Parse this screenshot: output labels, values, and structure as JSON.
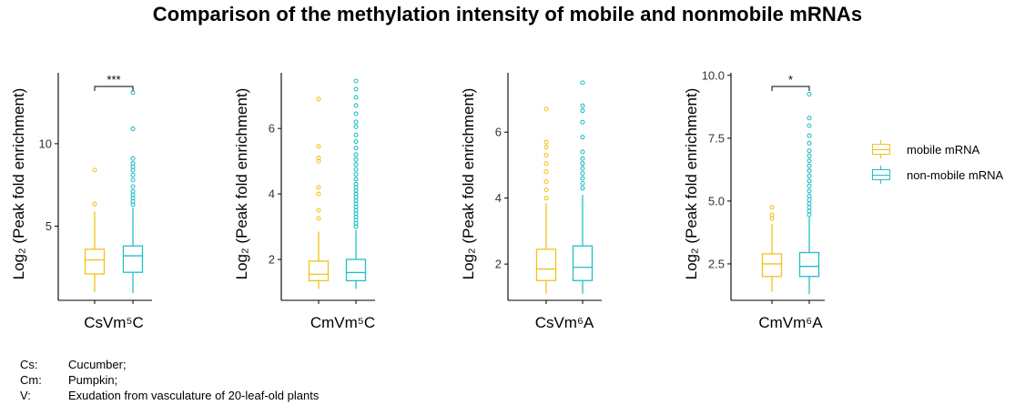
{
  "title": "Comparison of the methylation intensity of mobile and nonmobile mRNAs",
  "colors": {
    "mobile": "#f2c21b",
    "nonmobile": "#22bfc7"
  },
  "legend": [
    {
      "key": "mobile",
      "label": "mobile mRNA"
    },
    {
      "key": "nonmobile",
      "label": "non-mobile mRNA"
    }
  ],
  "notes": [
    {
      "abbr": "Cs:",
      "text": "Cucumber;"
    },
    {
      "abbr": "Cm:",
      "text": "Pumpkin;"
    },
    {
      "abbr": "V:",
      "text": "Exudation from vasculature of 20-leaf-old plants"
    }
  ],
  "chart_data": [
    {
      "type": "box",
      "xlabel": "CsVm⁵C",
      "ylabel": "Log₂ (Peak fold enrichment)",
      "ylim": [
        0.5,
        14.3
      ],
      "yticks": [
        5,
        10
      ],
      "ytick_labels": [
        "5",
        "10"
      ],
      "significance": "***",
      "series": [
        {
          "name": "mobile mRNA",
          "key": "mobile",
          "min": 1.0,
          "q1": 2.1,
          "median": 2.95,
          "q3": 3.6,
          "max": 5.9,
          "outliers": [
            6.35,
            8.4
          ]
        },
        {
          "name": "non-mobile mRNA",
          "key": "nonmobile",
          "min": 0.95,
          "q1": 2.2,
          "median": 3.2,
          "q3": 3.8,
          "max": 6.1,
          "outliers": [
            6.3,
            6.5,
            6.7,
            6.9,
            7.1,
            7.4,
            7.8,
            8.1,
            8.4,
            8.6,
            8.8,
            9.1,
            10.9,
            13.1
          ]
        }
      ]
    },
    {
      "type": "box",
      "xlabel": "CmVm⁵C",
      "ylabel": "Log₂ (Peak fold enrichment)",
      "ylim": [
        0.75,
        7.7
      ],
      "yticks": [
        2,
        4,
        6
      ],
      "ytick_labels": [
        "2",
        "4",
        "6"
      ],
      "significance": "",
      "series": [
        {
          "name": "mobile mRNA",
          "key": "mobile",
          "min": 1.1,
          "q1": 1.35,
          "median": 1.55,
          "q3": 1.95,
          "max": 2.85,
          "outliers": [
            3.25,
            3.5,
            4.0,
            4.2,
            5.0,
            5.1,
            5.45,
            6.9
          ]
        },
        {
          "name": "non-mobile mRNA",
          "key": "nonmobile",
          "min": 1.1,
          "q1": 1.35,
          "median": 1.6,
          "q3": 2.0,
          "max": 2.9,
          "outliers": [
            3.0,
            3.1,
            3.2,
            3.3,
            3.4,
            3.5,
            3.6,
            3.7,
            3.8,
            3.9,
            4.0,
            4.1,
            4.2,
            4.3,
            4.45,
            4.6,
            4.75,
            4.9,
            5.05,
            5.2,
            5.4,
            5.6,
            5.8,
            6.05,
            6.2,
            6.45,
            6.7,
            6.95,
            7.2,
            7.45
          ]
        }
      ]
    },
    {
      "type": "box",
      "xlabel": "CsVm⁶A",
      "ylabel": "Log₂ (Peak fold enrichment)",
      "ylim": [
        0.9,
        7.8
      ],
      "yticks": [
        2,
        4,
        6
      ],
      "ytick_labels": [
        "2",
        "4",
        "6"
      ],
      "significance": "",
      "series": [
        {
          "name": "mobile mRNA",
          "key": "mobile",
          "min": 1.1,
          "q1": 1.5,
          "median": 1.85,
          "q3": 2.45,
          "max": 3.85,
          "outliers": [
            4.0,
            4.25,
            4.5,
            4.8,
            5.05,
            5.3,
            5.55,
            5.7,
            6.7
          ]
        },
        {
          "name": "non-mobile mRNA",
          "key": "nonmobile",
          "min": 1.1,
          "q1": 1.5,
          "median": 1.9,
          "q3": 2.55,
          "max": 4.1,
          "outliers": [
            4.3,
            4.45,
            4.6,
            4.75,
            4.9,
            5.05,
            5.2,
            5.4,
            5.85,
            6.3,
            6.65,
            6.8,
            7.5
          ]
        }
      ]
    },
    {
      "type": "box",
      "xlabel": "CmVm⁶A",
      "ylabel": "Log₂ (Peak fold enrichment)",
      "ylim": [
        1.05,
        10.1
      ],
      "yticks": [
        2.5,
        5.0,
        7.5,
        10.0
      ],
      "ytick_labels": [
        "2.5",
        "5.0",
        "7.5",
        "10.0"
      ],
      "significance": "*",
      "series": [
        {
          "name": "mobile mRNA",
          "key": "mobile",
          "min": 1.4,
          "q1": 2.0,
          "median": 2.5,
          "q3": 2.9,
          "max": 4.1,
          "outliers": [
            4.3,
            4.45,
            4.75
          ]
        },
        {
          "name": "non-mobile mRNA",
          "key": "nonmobile",
          "min": 1.3,
          "q1": 2.0,
          "median": 2.4,
          "q3": 2.95,
          "max": 4.35,
          "outliers": [
            4.45,
            4.6,
            4.75,
            4.9,
            5.05,
            5.2,
            5.4,
            5.6,
            5.8,
            6.0,
            6.2,
            6.4,
            6.6,
            6.8,
            7.0,
            7.3,
            7.6,
            8.0,
            8.3,
            9.25
          ]
        }
      ]
    }
  ]
}
